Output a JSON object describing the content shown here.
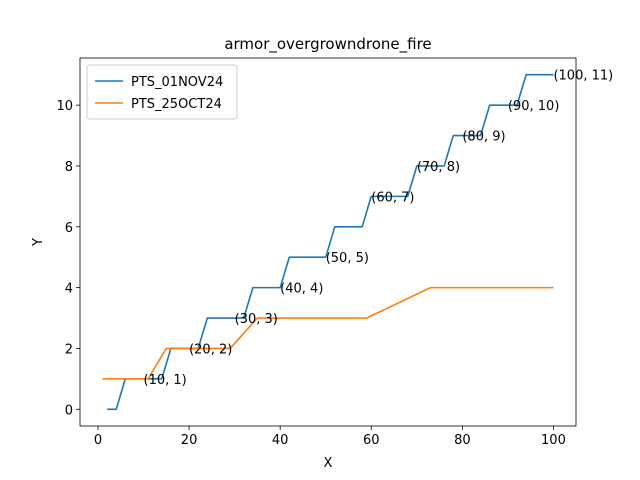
{
  "chart_data": {
    "type": "line",
    "title": "armor_overgrowndrone_fire",
    "xlabel": "X",
    "ylabel": "Y",
    "xlim": [
      -3.95,
      104.95
    ],
    "ylim": [
      -0.55,
      11.55
    ],
    "xticks": [
      0,
      20,
      40,
      60,
      80,
      100
    ],
    "yticks": [
      0,
      2,
      4,
      6,
      8,
      10
    ],
    "grid": false,
    "legend_position": "upper left",
    "series": [
      {
        "name": "PTS_01NOV24",
        "color": "#1f77b4",
        "x": [
          2,
          4,
          6,
          8,
          10,
          12,
          14,
          16,
          18,
          20,
          22,
          24,
          26,
          28,
          30,
          32,
          34,
          36,
          38,
          40,
          42,
          44,
          46,
          48,
          50,
          52,
          54,
          56,
          58,
          60,
          62,
          64,
          66,
          68,
          70,
          72,
          74,
          76,
          78,
          80,
          82,
          84,
          86,
          88,
          90,
          92,
          94,
          96,
          98,
          100
        ],
        "y": [
          0,
          0,
          1,
          1,
          1,
          1,
          1,
          2,
          2,
          2,
          2,
          3,
          3,
          3,
          3,
          3,
          4,
          4,
          4,
          4,
          5,
          5,
          5,
          5,
          5,
          6,
          6,
          6,
          6,
          7,
          7,
          7,
          7,
          7,
          8,
          8,
          8,
          8,
          9,
          9,
          9,
          9,
          10,
          10,
          10,
          10,
          11,
          11,
          11,
          11
        ]
      },
      {
        "name": "PTS_25OCT24",
        "color": "#ff7f0e",
        "x": [
          1,
          11,
          15,
          29,
          35,
          59,
          73,
          100
        ],
        "y": [
          1,
          1,
          2,
          2,
          3,
          3,
          4,
          4
        ]
      }
    ],
    "annotations": [
      {
        "text": "(10, 1)",
        "x": 10,
        "y": 1
      },
      {
        "text": "(20, 2)",
        "x": 20,
        "y": 2
      },
      {
        "text": "(30, 3)",
        "x": 30,
        "y": 3
      },
      {
        "text": "(40, 4)",
        "x": 40,
        "y": 4
      },
      {
        "text": "(50, 5)",
        "x": 50,
        "y": 5
      },
      {
        "text": "(60, 7)",
        "x": 60,
        "y": 7
      },
      {
        "text": "(70, 8)",
        "x": 70,
        "y": 8
      },
      {
        "text": "(80, 9)",
        "x": 80,
        "y": 9
      },
      {
        "text": "(90, 10)",
        "x": 90,
        "y": 10
      },
      {
        "text": "(100, 11)",
        "x": 100,
        "y": 11
      }
    ]
  }
}
